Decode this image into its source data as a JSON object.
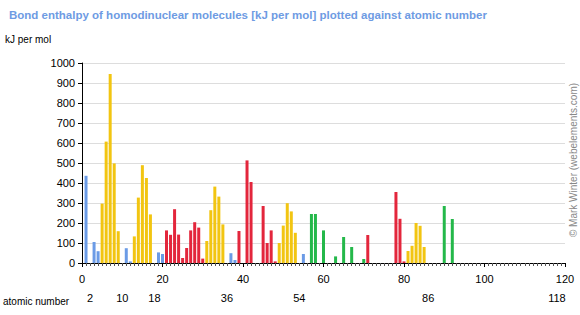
{
  "chart_data": {
    "type": "bar",
    "title": "Bond enthalpy of homodinuclear molecules [kJ per mol] plotted against atomic number",
    "y_axis_label": "kJ per mol",
    "x_axis_label": "atomic number",
    "copyright": "© Mark Winter (webelements.com)",
    "x": [
      1,
      2,
      3,
      4,
      5,
      6,
      7,
      8,
      9,
      10,
      11,
      12,
      13,
      14,
      15,
      16,
      17,
      18,
      19,
      20,
      21,
      22,
      23,
      24,
      25,
      26,
      27,
      28,
      29,
      30,
      31,
      32,
      33,
      34,
      35,
      36,
      37,
      38,
      39,
      40,
      41,
      42,
      43,
      44,
      45,
      46,
      47,
      48,
      49,
      50,
      51,
      52,
      53,
      54,
      55,
      56,
      57,
      58,
      59,
      60,
      61,
      62,
      63,
      64,
      65,
      66,
      67,
      68,
      69,
      70,
      71,
      72,
      73,
      74,
      75,
      76,
      77,
      78,
      79,
      80,
      81,
      82,
      83,
      84,
      85,
      86,
      87,
      88,
      89,
      90,
      91,
      92,
      93,
      94,
      95,
      96,
      97,
      98,
      99,
      100,
      101,
      102,
      103,
      104,
      105,
      106,
      107,
      108,
      109,
      110,
      111,
      112,
      113,
      114,
      115,
      116,
      117,
      118
    ],
    "values": [
      436,
      null,
      105,
      59,
      297,
      607,
      945,
      498,
      159,
      null,
      74,
      8,
      133,
      327,
      489,
      425,
      243,
      null,
      53,
      45,
      163,
      141,
      269,
      142,
      25,
      75,
      163,
      204,
      177,
      22,
      110,
      264,
      382,
      332,
      193,
      null,
      49,
      15,
      160,
      null,
      513,
      405,
      null,
      null,
      285,
      100,
      163,
      8,
      100,
      187,
      299,
      258,
      151,
      null,
      45,
      null,
      245,
      245,
      null,
      163,
      null,
      null,
      33,
      null,
      130,
      null,
      80,
      null,
      null,
      20,
      140,
      null,
      null,
      null,
      null,
      null,
      null,
      355,
      221,
      8,
      60,
      86,
      200,
      186,
      80,
      null,
      null,
      null,
      null,
      285,
      null,
      220,
      null,
      null,
      null,
      null,
      null,
      null,
      null,
      null,
      null,
      null,
      null,
      null,
      null,
      null,
      null,
      null,
      null,
      null,
      null,
      null,
      null,
      null,
      null,
      null,
      null,
      null
    ],
    "colors": [
      "#6b9be6",
      "#6b9be6",
      "#6b9be6",
      "#6b9be6",
      "#f2c511",
      "#f2c511",
      "#f2c511",
      "#f2c511",
      "#f2c511",
      "#f2c511",
      "#6b9be6",
      "#6b9be6",
      "#f2c511",
      "#f2c511",
      "#f2c511",
      "#f2c511",
      "#f2c511",
      "#f2c511",
      "#6b9be6",
      "#6b9be6",
      "#e3263c",
      "#e3263c",
      "#e3263c",
      "#e3263c",
      "#e3263c",
      "#e3263c",
      "#e3263c",
      "#e3263c",
      "#e3263c",
      "#e3263c",
      "#f2c511",
      "#f2c511",
      "#f2c511",
      "#f2c511",
      "#f2c511",
      "#f2c511",
      "#6b9be6",
      "#6b9be6",
      "#e3263c",
      "#e3263c",
      "#e3263c",
      "#e3263c",
      "#e3263c",
      "#e3263c",
      "#e3263c",
      "#e3263c",
      "#e3263c",
      "#e3263c",
      "#f2c511",
      "#f2c511",
      "#f2c511",
      "#f2c511",
      "#f2c511",
      "#f2c511",
      "#6b9be6",
      "#6b9be6",
      "#24b84a",
      "#24b84a",
      "#24b84a",
      "#24b84a",
      "#24b84a",
      "#24b84a",
      "#24b84a",
      "#24b84a",
      "#24b84a",
      "#24b84a",
      "#24b84a",
      "#24b84a",
      "#24b84a",
      "#24b84a",
      "#e3263c",
      "#e3263c",
      "#e3263c",
      "#e3263c",
      "#e3263c",
      "#e3263c",
      "#e3263c",
      "#e3263c",
      "#e3263c",
      "#e3263c",
      "#f2c511",
      "#f2c511",
      "#f2c511",
      "#f2c511",
      "#f2c511",
      "#f2c511",
      "#6b9be6",
      "#6b9be6",
      "#24b84a",
      "#24b84a",
      "#24b84a",
      "#24b84a",
      "#24b84a",
      "#24b84a",
      "#24b84a",
      "#24b84a",
      "#24b84a",
      "#24b84a",
      "#24b84a",
      "#24b84a",
      "#24b84a",
      "#24b84a",
      "#e3263c",
      "#e3263c",
      "#e3263c",
      "#e3263c",
      "#e3263c",
      "#e3263c",
      "#e3263c",
      "#e3263c",
      "#e3263c",
      "#e3263c",
      "#f2c511",
      "#f2c511",
      "#f2c511",
      "#f2c511",
      "#f2c511",
      "#f2c511"
    ],
    "xlim": [
      0,
      120
    ],
    "xticks": [
      0,
      20,
      40,
      60,
      80,
      100,
      120
    ],
    "noble_gas_ticks": [
      2,
      10,
      18,
      36,
      54,
      86,
      118
    ],
    "ylim": [
      0,
      1000
    ],
    "yticks": [
      0,
      100,
      200,
      300,
      400,
      500,
      600,
      700,
      800,
      900,
      1000
    ],
    "grid": true
  }
}
